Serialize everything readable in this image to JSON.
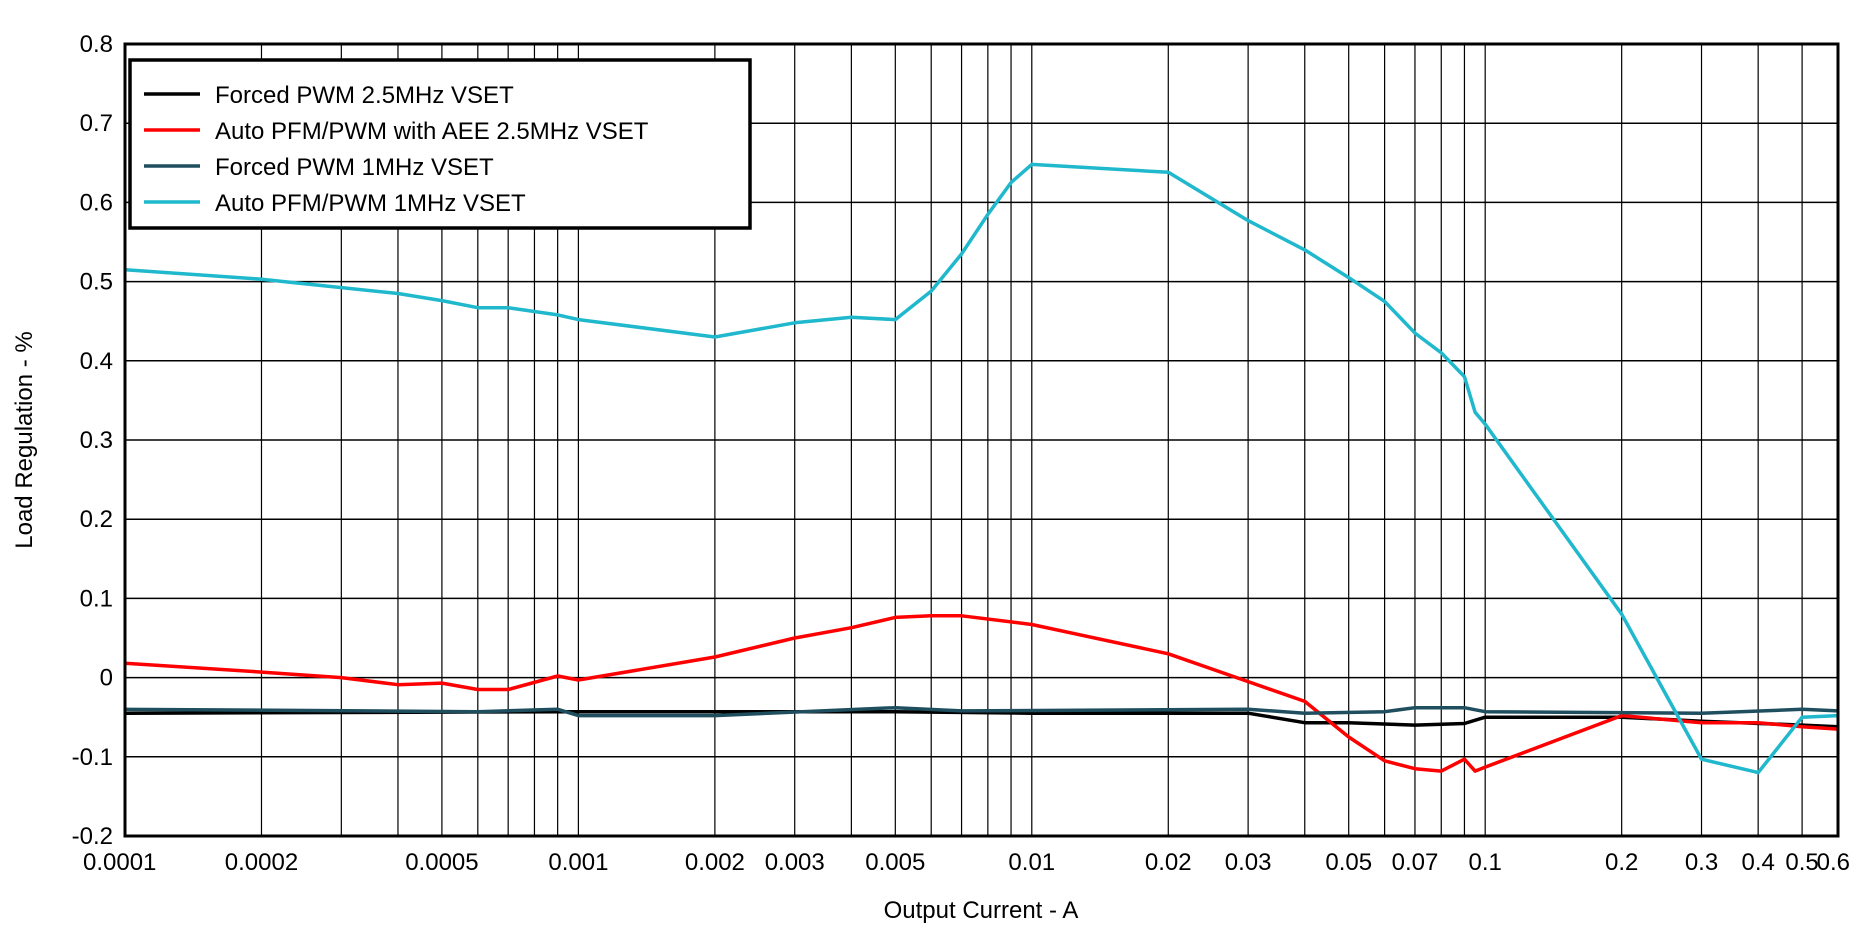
{
  "chart_data": {
    "type": "line",
    "title": "",
    "xlabel": "Output Current - A",
    "ylabel": "Load Regulation - %",
    "xscale": "log",
    "xlim": [
      0.0001,
      0.6
    ],
    "ylim": [
      -0.2,
      0.8
    ],
    "grid": true,
    "legend_position": "top-left",
    "x_tick_labels": [
      "0.0001",
      "0.0002",
      "0.0005",
      "0.001",
      "0.002",
      "0.003",
      "0.005",
      "0.01",
      "0.02",
      "0.03",
      "0.05",
      "0.07",
      "0.1",
      "0.2",
      "0.3",
      "0.4",
      "0.5",
      "0.6"
    ],
    "y_tick_labels": [
      "-0.2",
      "-0.1",
      "0",
      "0.1",
      "0.2",
      "0.3",
      "0.4",
      "0.5",
      "0.6",
      "0.7",
      "0.8"
    ],
    "series": [
      {
        "name": "Forced PWM 2.5MHz VSET",
        "color": "#000000",
        "points": [
          [
            0.0001,
            -0.045
          ],
          [
            0.001,
            -0.043
          ],
          [
            0.005,
            -0.043
          ],
          [
            0.01,
            -0.045
          ],
          [
            0.03,
            -0.045
          ],
          [
            0.04,
            -0.057
          ],
          [
            0.05,
            -0.057
          ],
          [
            0.07,
            -0.06
          ],
          [
            0.09,
            -0.058
          ],
          [
            0.1,
            -0.05
          ],
          [
            0.2,
            -0.05
          ],
          [
            0.3,
            -0.055
          ],
          [
            0.5,
            -0.06
          ],
          [
            0.6,
            -0.062
          ]
        ]
      },
      {
        "name": "Auto PFM/PWM with AEE 2.5MHz VSET",
        "color": "#ff0000",
        "points": [
          [
            0.0001,
            0.018
          ],
          [
            0.0002,
            0.007
          ],
          [
            0.0003,
            0.0
          ],
          [
            0.0004,
            -0.009
          ],
          [
            0.0005,
            -0.007
          ],
          [
            0.0006,
            -0.015
          ],
          [
            0.0007,
            -0.015
          ],
          [
            0.0009,
            0.002
          ],
          [
            0.001,
            -0.003
          ],
          [
            0.002,
            0.026
          ],
          [
            0.003,
            0.05
          ],
          [
            0.004,
            0.063
          ],
          [
            0.005,
            0.076
          ],
          [
            0.006,
            0.078
          ],
          [
            0.007,
            0.078
          ],
          [
            0.01,
            0.067
          ],
          [
            0.02,
            0.03
          ],
          [
            0.03,
            -0.005
          ],
          [
            0.04,
            -0.03
          ],
          [
            0.05,
            -0.075
          ],
          [
            0.06,
            -0.105
          ],
          [
            0.07,
            -0.115
          ],
          [
            0.08,
            -0.118
          ],
          [
            0.09,
            -0.103
          ],
          [
            0.095,
            -0.118
          ],
          [
            0.1,
            -0.113
          ],
          [
            0.2,
            -0.048
          ],
          [
            0.3,
            -0.057
          ],
          [
            0.4,
            -0.057
          ],
          [
            0.5,
            -0.062
          ],
          [
            0.6,
            -0.065
          ]
        ]
      },
      {
        "name": "Forced PWM 1MHz VSET",
        "color": "#1f4e5f",
        "points": [
          [
            0.0001,
            -0.04
          ],
          [
            0.0006,
            -0.043
          ],
          [
            0.0009,
            -0.04
          ],
          [
            0.001,
            -0.048
          ],
          [
            0.002,
            -0.048
          ],
          [
            0.005,
            -0.038
          ],
          [
            0.007,
            -0.042
          ],
          [
            0.03,
            -0.04
          ],
          [
            0.04,
            -0.045
          ],
          [
            0.06,
            -0.043
          ],
          [
            0.07,
            -0.038
          ],
          [
            0.09,
            -0.038
          ],
          [
            0.1,
            -0.043
          ],
          [
            0.3,
            -0.045
          ],
          [
            0.5,
            -0.04
          ],
          [
            0.6,
            -0.042
          ]
        ]
      },
      {
        "name": "Auto PFM/PWM 1MHz VSET",
        "color": "#1fb8cc",
        "points": [
          [
            0.0001,
            0.515
          ],
          [
            0.0002,
            0.503
          ],
          [
            0.0004,
            0.485
          ],
          [
            0.0005,
            0.476
          ],
          [
            0.0006,
            0.467
          ],
          [
            0.0007,
            0.467
          ],
          [
            0.0009,
            0.458
          ],
          [
            0.001,
            0.452
          ],
          [
            0.002,
            0.43
          ],
          [
            0.003,
            0.448
          ],
          [
            0.004,
            0.455
          ],
          [
            0.005,
            0.452
          ],
          [
            0.006,
            0.488
          ],
          [
            0.007,
            0.535
          ],
          [
            0.008,
            0.585
          ],
          [
            0.009,
            0.625
          ],
          [
            0.01,
            0.648
          ],
          [
            0.02,
            0.638
          ],
          [
            0.03,
            0.577
          ],
          [
            0.04,
            0.54
          ],
          [
            0.05,
            0.505
          ],
          [
            0.06,
            0.475
          ],
          [
            0.07,
            0.435
          ],
          [
            0.08,
            0.41
          ],
          [
            0.09,
            0.38
          ],
          [
            0.095,
            0.335
          ],
          [
            0.1,
            0.32
          ],
          [
            0.2,
            0.08
          ],
          [
            0.3,
            -0.103
          ],
          [
            0.4,
            -0.12
          ],
          [
            0.5,
            -0.05
          ],
          [
            0.6,
            -0.048
          ]
        ]
      }
    ]
  }
}
